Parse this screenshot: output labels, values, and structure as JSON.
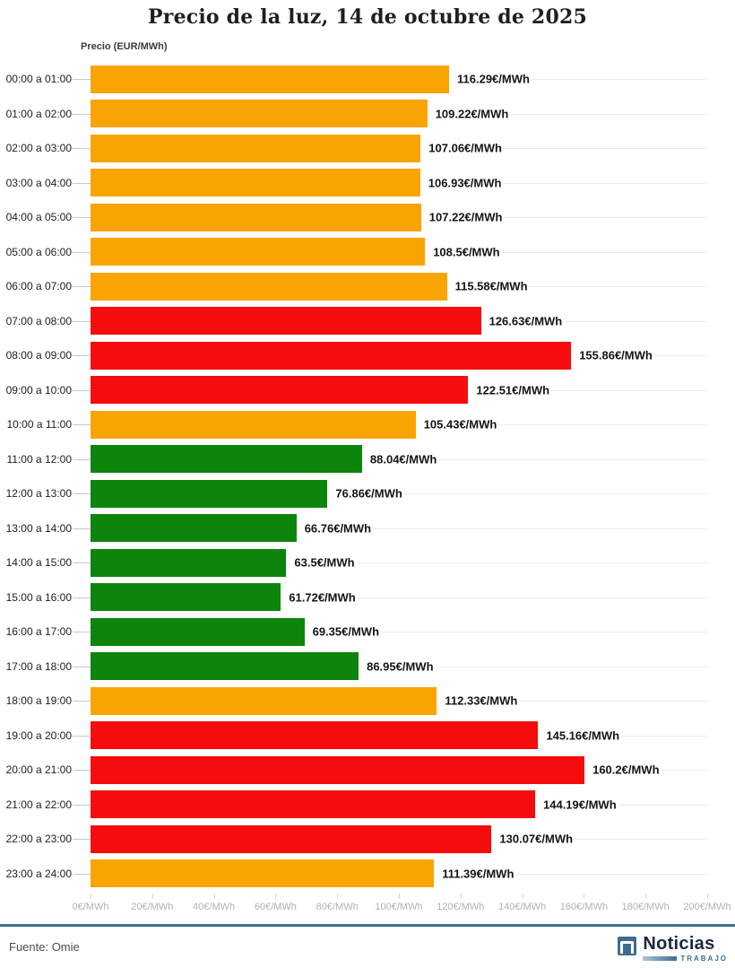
{
  "title": "Precio de la luz, 14 de octubre de 2025",
  "chart_data": {
    "type": "bar",
    "orientation": "horizontal",
    "title": "Precio de la luz, 14 de octubre de 2025",
    "axis_title": "Precio (EUR/MWh)",
    "xlim": [
      0,
      200
    ],
    "grid": "horizontal-per-row",
    "x_tick_values": [
      0,
      20,
      40,
      60,
      80,
      100,
      120,
      140,
      160,
      180,
      200
    ],
    "x_tick_labels": [
      "0€/MWh",
      "20€/MWh",
      "40€/MWh",
      "60€/MWh",
      "80€/MWh",
      "100€/MWh",
      "120€/MWh",
      "140€/MWh",
      "160€/MWh",
      "180€/MWh",
      "200€/MWh"
    ],
    "categories": [
      "00:00 a 01:00",
      "01:00 a 02:00",
      "02:00 a 03:00",
      "03:00 a 04:00",
      "04:00 a 05:00",
      "05:00 a 06:00",
      "06:00 a 07:00",
      "07:00 a 08:00",
      "08:00 a 09:00",
      "09:00 a 10:00",
      "10:00 a 11:00",
      "11:00 a 12:00",
      "12:00 a 13:00",
      "13:00 a 14:00",
      "14:00 a 15:00",
      "15:00 a 16:00",
      "16:00 a 17:00",
      "17:00 a 18:00",
      "18:00 a 19:00",
      "19:00 a 20:00",
      "20:00 a 21:00",
      "21:00 a 22:00",
      "22:00 a 23:00",
      "23:00 a 24:00"
    ],
    "values": [
      116.29,
      109.22,
      107.06,
      106.93,
      107.22,
      108.5,
      115.58,
      126.63,
      155.86,
      122.51,
      105.43,
      88.04,
      76.86,
      66.76,
      63.5,
      61.72,
      69.35,
      86.95,
      112.33,
      145.16,
      160.2,
      144.19,
      130.07,
      111.39
    ],
    "value_labels": [
      "116.29€/MWh",
      "109.22€/MWh",
      "107.06€/MWh",
      "106.93€/MWh",
      "107.22€/MWh",
      "108.5€/MWh",
      "115.58€/MWh",
      "126.63€/MWh",
      "155.86€/MWh",
      "122.51€/MWh",
      "105.43€/MWh",
      "88.04€/MWh",
      "76.86€/MWh",
      "66.76€/MWh",
      "63.5€/MWh",
      "61.72€/MWh",
      "69.35€/MWh",
      "86.95€/MWh",
      "112.33€/MWh",
      "145.16€/MWh",
      "160.2€/MWh",
      "144.19€/MWh",
      "130.07€/MWh",
      "111.39€/MWh"
    ],
    "levels": [
      "mid",
      "mid",
      "mid",
      "mid",
      "mid",
      "mid",
      "mid",
      "high",
      "high",
      "high",
      "mid",
      "low",
      "low",
      "low",
      "low",
      "low",
      "low",
      "low",
      "mid",
      "high",
      "high",
      "high",
      "high",
      "mid"
    ],
    "colors": {
      "low": "#0d850d",
      "mid": "#f9a402",
      "high": "#f50c0c"
    }
  },
  "footer": {
    "source": "Fuente: Omie",
    "divider_color": "#3e6d90",
    "logo": {
      "name": "Noticias",
      "sub": "TRABAJO"
    }
  }
}
